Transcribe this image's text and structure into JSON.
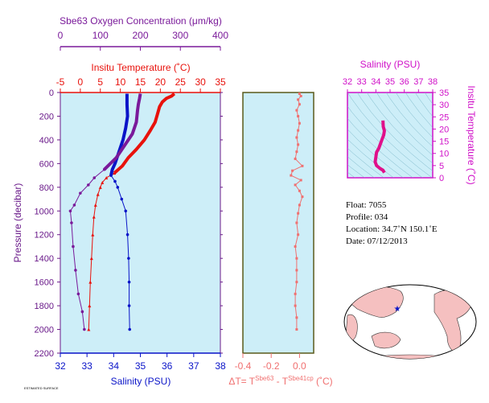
{
  "colors": {
    "plot_bg": "#cdeef8",
    "temperature": "#e8120c",
    "salinity": "#0a14c8",
    "oxygen": "#7a1a9a",
    "pressure_axis": "#6a1a8a",
    "delta_t": "#f07070",
    "delta_frame": "#5a5a1a",
    "ts_axis": "#d010c8",
    "ts_line": "#e0108a"
  },
  "chart_data": [
    {
      "type": "line",
      "panel": "profile",
      "ylabel": "Pressure (decibar)",
      "ylim": [
        2200,
        0
      ],
      "yticks": [
        "0",
        "200",
        "400",
        "600",
        "800",
        "1000",
        "1200",
        "1400",
        "1600",
        "1800",
        "2000",
        "2200"
      ],
      "axes": {
        "oxygen": {
          "label": "Sbe63 Oxygen Concentration (μm/kg)",
          "range": [
            0,
            400
          ],
          "ticks": [
            "0",
            "100",
            "200",
            "300",
            "400"
          ]
        },
        "temperature": {
          "label": "Insitu Temperature (˚C)",
          "range": [
            -5,
            35
          ],
          "ticks": [
            "-5",
            "0",
            "5",
            "10",
            "15",
            "20",
            "25",
            "30",
            "35"
          ]
        },
        "salinity": {
          "label": "Salinity (PSU)",
          "range": [
            32,
            38
          ],
          "ticks": [
            "32",
            "33",
            "34",
            "35",
            "36",
            "37",
            "38"
          ]
        }
      },
      "series": [
        {
          "axis": "temperature",
          "pressure": [
            10,
            30,
            50,
            80,
            120,
            180,
            250,
            320,
            400,
            480,
            550,
            620,
            680,
            720,
            760,
            800,
            860,
            950,
            1050,
            1200,
            1400,
            1600,
            1800,
            2000
          ],
          "values": [
            23.5,
            22.8,
            21.5,
            20.5,
            19.8,
            19.3,
            18.7,
            17.5,
            16,
            14,
            12,
            10.5,
            8.5,
            6.5,
            5.5,
            5,
            4.4,
            3.8,
            3.4,
            3.1,
            2.8,
            2.5,
            2.3,
            2.1
          ]
        },
        {
          "axis": "salinity",
          "pressure": [
            10,
            50,
            100,
            200,
            300,
            400,
            500,
            600,
            650,
            700,
            750,
            800,
            900,
            1000,
            1200,
            1400,
            1600,
            1800,
            2000
          ],
          "values": [
            34.5,
            34.5,
            34.5,
            34.52,
            34.45,
            34.35,
            34.2,
            34.05,
            33.95,
            33.9,
            34.05,
            34.15,
            34.3,
            34.45,
            34.52,
            34.56,
            34.58,
            34.58,
            34.6
          ]
        },
        {
          "axis": "oxygen",
          "pressure": [
            10,
            50,
            100,
            150,
            250,
            350,
            450,
            550,
            650,
            720,
            780,
            850,
            950,
            1000,
            1100,
            1300,
            1500,
            1700,
            1850,
            2000
          ],
          "values": [
            200,
            198,
            195,
            193,
            190,
            180,
            160,
            140,
            110,
            85,
            70,
            50,
            35,
            25,
            28,
            32,
            38,
            45,
            55,
            60
          ]
        }
      ]
    },
    {
      "type": "scatter",
      "panel": "delta_t",
      "xlabel": "ΔT= T",
      "xlabel_sup1": "Sbe63",
      "xlabel_mid": " - T",
      "xlabel_sup2": "Sbe41cp",
      "xlabel_unit": " (˚C)",
      "xlim": [
        -0.4,
        0.1
      ],
      "xticks": [
        "-0.4",
        "-0.2",
        "0.0"
      ],
      "pressure": [
        10,
        30,
        60,
        100,
        150,
        200,
        260,
        320,
        380,
        440,
        500,
        560,
        620,
        660,
        700,
        740,
        780,
        830,
        880,
        950,
        1020,
        1100,
        1200,
        1300,
        1400,
        1500,
        1600,
        1700,
        1800,
        1900,
        2000
      ],
      "values": [
        0.0,
        0.01,
        -0.01,
        0.0,
        -0.02,
        -0.01,
        0.0,
        -0.01,
        -0.02,
        -0.01,
        -0.02,
        -0.03,
        0.02,
        -0.05,
        -0.06,
        0.01,
        -0.03,
        0.0,
        0.02,
        0.0,
        -0.01,
        -0.02,
        -0.01,
        -0.03,
        -0.02,
        -0.02,
        -0.02,
        -0.03,
        -0.03,
        -0.02,
        -0.02
      ]
    },
    {
      "type": "line",
      "panel": "ts",
      "xlabel": "Salinity (PSU)",
      "ylabel": "Insitu Temperature (˚C)",
      "xlim": [
        32,
        38
      ],
      "ylim": [
        0,
        35
      ],
      "xticks": [
        "32",
        "33",
        "34",
        "35",
        "36",
        "37",
        "38"
      ],
      "yticks": [
        "0",
        "5",
        "10",
        "15",
        "20",
        "25",
        "30",
        "35"
      ],
      "salinity": [
        34.5,
        34.52,
        34.6,
        34.55,
        34.45,
        34.2,
        34.05,
        33.95,
        34.05,
        34.3,
        34.5,
        34.6
      ],
      "temperature": [
        23.5,
        21,
        19.3,
        17.5,
        16,
        12,
        10.5,
        6.5,
        5,
        3.8,
        3.1,
        2.1
      ]
    }
  ],
  "info": {
    "float": "Float:  7055",
    "profile": "Profile:  034",
    "location": "Location:  34.7˚N  150.1˚E",
    "date": "Date:  07/12/2013"
  },
  "footer_note": "ESTIMATED SURFACE"
}
